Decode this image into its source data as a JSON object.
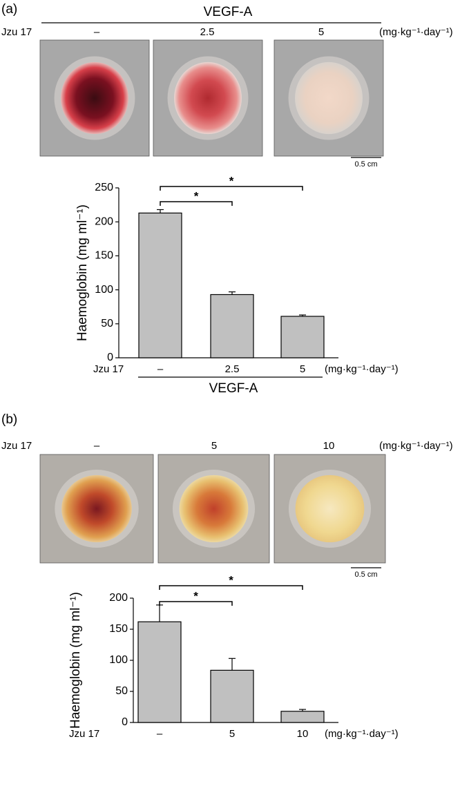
{
  "panels": [
    {
      "label": "(a)",
      "header": "VEGF-A",
      "row_label": "Jzu 17",
      "doses": [
        "–",
        "2.5",
        "5"
      ],
      "unit": "(mg·kg⁻¹·day⁻¹)",
      "scale_bar": "0.5 cm"
    },
    {
      "label": "(b)",
      "row_label": "Jzu 17",
      "doses": [
        "–",
        "5",
        "10"
      ],
      "unit": "(mg·kg⁻¹·day⁻¹)",
      "scale_bar": "0.5 cm"
    }
  ],
  "chart_data": [
    {
      "type": "bar",
      "y_label": "Haemoglobin (mg ml⁻¹)",
      "x_row_label": "Jzu 17",
      "x_unit": "(mg·kg⁻¹·day⁻¹)",
      "x_group": "VEGF-A",
      "categories": [
        "–",
        "2.5",
        "5"
      ],
      "values": [
        213,
        93,
        61
      ],
      "errors": [
        5,
        4,
        2
      ],
      "color": "#c0c0c0",
      "ylim": [
        0,
        250
      ],
      "yticks": [
        0,
        50,
        100,
        150,
        200,
        250
      ],
      "annotations": [
        "*",
        "*"
      ]
    },
    {
      "type": "bar",
      "y_label": "Haemoglobin (mg ml⁻¹)",
      "x_row_label": "Jzu 17",
      "x_unit": "(mg·kg⁻¹·day⁻¹)",
      "categories": [
        "–",
        "5",
        "10"
      ],
      "values": [
        162,
        84,
        18
      ],
      "errors": [
        27,
        19,
        3
      ],
      "color": "#c0c0c0",
      "ylim": [
        0,
        200
      ],
      "yticks": [
        0,
        50,
        100,
        150,
        200
      ],
      "annotations": [
        "*",
        "*"
      ]
    }
  ]
}
